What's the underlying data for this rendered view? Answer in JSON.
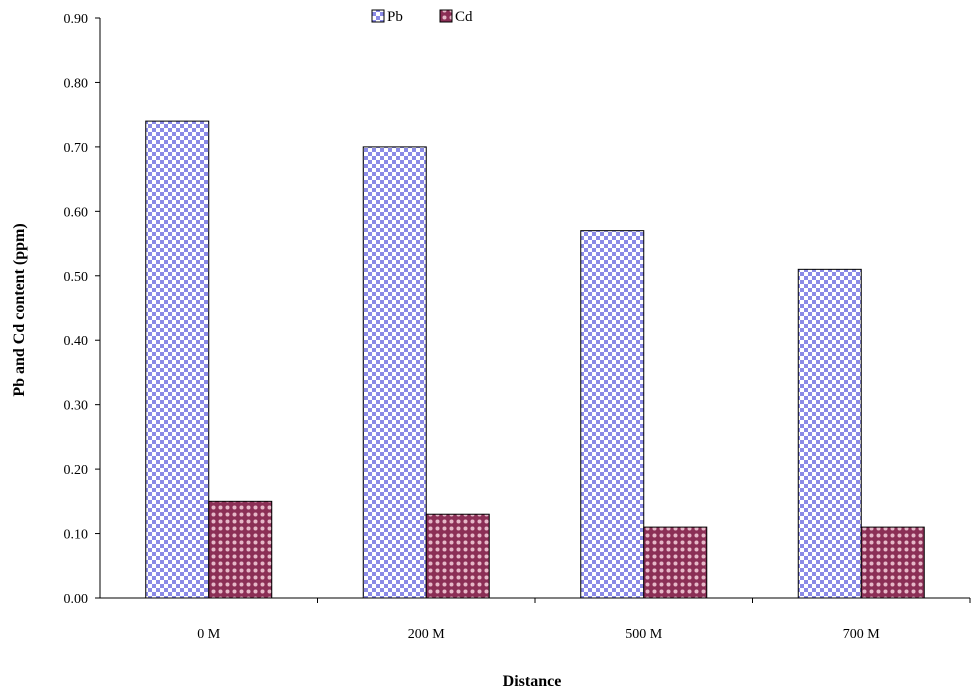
{
  "chart_data": {
    "type": "bar",
    "xlabel": "Distance",
    "ylabel": "Pb and Cd content (ppm)",
    "categories": [
      "0 M",
      "200 M",
      "500 M",
      "700 M"
    ],
    "series": [
      {
        "name": "Pb",
        "values": [
          0.74,
          0.7,
          0.57,
          0.51
        ]
      },
      {
        "name": "Cd",
        "values": [
          0.15,
          0.13,
          0.11,
          0.11
        ]
      }
    ],
    "ylim": [
      0,
      0.9
    ],
    "yticks": [
      "0.00",
      "0.10",
      "0.20",
      "0.30",
      "0.40",
      "0.50",
      "0.60",
      "0.70",
      "0.80",
      "0.90"
    ],
    "legend_position": "top-center",
    "grid": false,
    "colors": {
      "Pb": "#8a8ae6",
      "Cd": "#8b2f56"
    }
  }
}
